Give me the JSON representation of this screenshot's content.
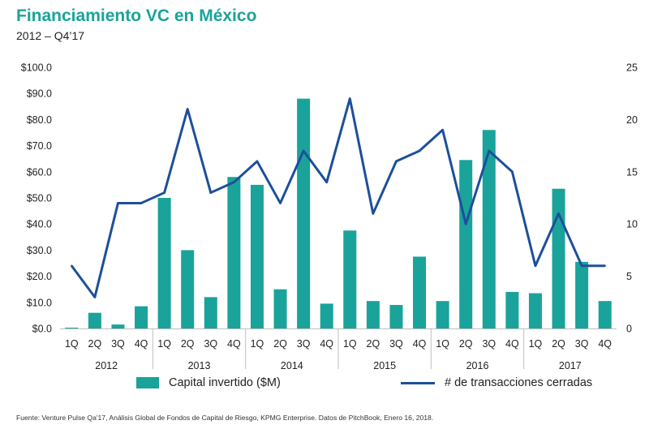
{
  "header": {
    "title": "Financiamiento VC en México",
    "subtitle": "2012 – Q4’17"
  },
  "legend": {
    "bars": "Capital invertido ($M)",
    "line": "# de transacciones cerradas"
  },
  "source": "Fuente: Venture Pulse Qa'17, Análisis Global de Fondos de Capital de Riesgo, KPMG Enterprise. Datos de PitchBook, Enero 16, 2018.",
  "colors": {
    "bars": "#1aa39a",
    "line": "#1d4f9b",
    "title": "#1aa39a"
  },
  "chart_data": {
    "type": "bar+line",
    "title": "Financiamiento VC en México",
    "subtitle": "2012 – Q4’17",
    "categories": [
      "1Q",
      "2Q",
      "3Q",
      "4Q",
      "1Q",
      "2Q",
      "3Q",
      "4Q",
      "1Q",
      "2Q",
      "3Q",
      "4Q",
      "1Q",
      "2Q",
      "3Q",
      "4Q",
      "1Q",
      "2Q",
      "3Q",
      "4Q",
      "1Q",
      "2Q",
      "3Q",
      "4Q"
    ],
    "year_groups": [
      {
        "label": "2012",
        "start": 0,
        "end": 3
      },
      {
        "label": "2013",
        "start": 4,
        "end": 7
      },
      {
        "label": "2014",
        "start": 8,
        "end": 11
      },
      {
        "label": "2015",
        "start": 12,
        "end": 15
      },
      {
        "label": "2016",
        "start": 16,
        "end": 19
      },
      {
        "label": "2017",
        "start": 20,
        "end": 23
      }
    ],
    "series": [
      {
        "name": "Capital invertido ($M)",
        "type": "bar",
        "axis": "left",
        "values": [
          0.3,
          6,
          1.5,
          8.5,
          50,
          30,
          12,
          58,
          55,
          15,
          88,
          9.5,
          37.5,
          10.5,
          9,
          27.5,
          10.5,
          64.5,
          76,
          14,
          13.5,
          53.5,
          25.5,
          10.5
        ]
      },
      {
        "name": "# de transacciones cerradas",
        "type": "line",
        "axis": "right",
        "values": [
          6,
          3,
          12,
          12,
          13,
          21,
          13,
          14,
          16,
          12,
          17,
          14,
          22,
          11,
          16,
          17,
          19,
          10,
          17,
          15,
          6,
          11,
          6,
          6
        ]
      }
    ],
    "y_left": {
      "range": [
        0,
        100
      ],
      "ticks": [
        0,
        10,
        20,
        30,
        40,
        50,
        60,
        70,
        80,
        90,
        100
      ],
      "tick_labels": [
        "$0.0",
        "$10.0",
        "$20.0",
        "$30.0",
        "$40.0",
        "$50.0",
        "$60.0",
        "$70.0",
        "$80.0",
        "$90.0",
        "$100.0"
      ]
    },
    "y_right": {
      "range": [
        0,
        25
      ],
      "ticks": [
        0,
        5,
        10,
        15,
        20,
        25
      ],
      "tick_labels": [
        "0",
        "5",
        "10",
        "15",
        "20",
        "25"
      ]
    },
    "grid": false,
    "legend_position": "bottom"
  }
}
